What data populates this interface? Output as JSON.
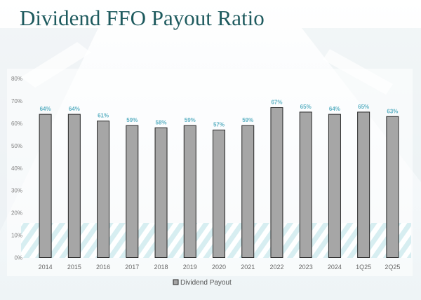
{
  "slide": {
    "title": "Dividend FFO Payout Ratio"
  },
  "colors": {
    "title": "#1e5a5e",
    "bar_fill": "#a6a6a6",
    "bar_stroke": "#262626",
    "data_label": "#5fb2c4",
    "axis_text": "#7f7f7f"
  },
  "chart_data": {
    "type": "bar",
    "categories": [
      "2014",
      "2015",
      "2016",
      "2017",
      "2018",
      "2019",
      "2020",
      "2021",
      "2022",
      "2023",
      "2024",
      "1Q25",
      "2Q25"
    ],
    "series": [
      {
        "name": "Dividend Payout",
        "values": [
          64,
          64,
          61,
          59,
          58,
          59,
          57,
          59,
          67,
          65,
          64,
          65,
          63
        ],
        "labels": [
          "64%",
          "64%",
          "61%",
          "59%",
          "58%",
          "59%",
          "57%",
          "59%",
          "67%",
          "65%",
          "64%",
          "65%",
          "63%"
        ]
      }
    ],
    "ylim": [
      0,
      80
    ],
    "yticks": [
      "0%",
      "10%",
      "20%",
      "30%",
      "40%",
      "50%",
      "60%",
      "70%",
      "80%"
    ],
    "grid": false,
    "legend_position": "bottom-center"
  }
}
